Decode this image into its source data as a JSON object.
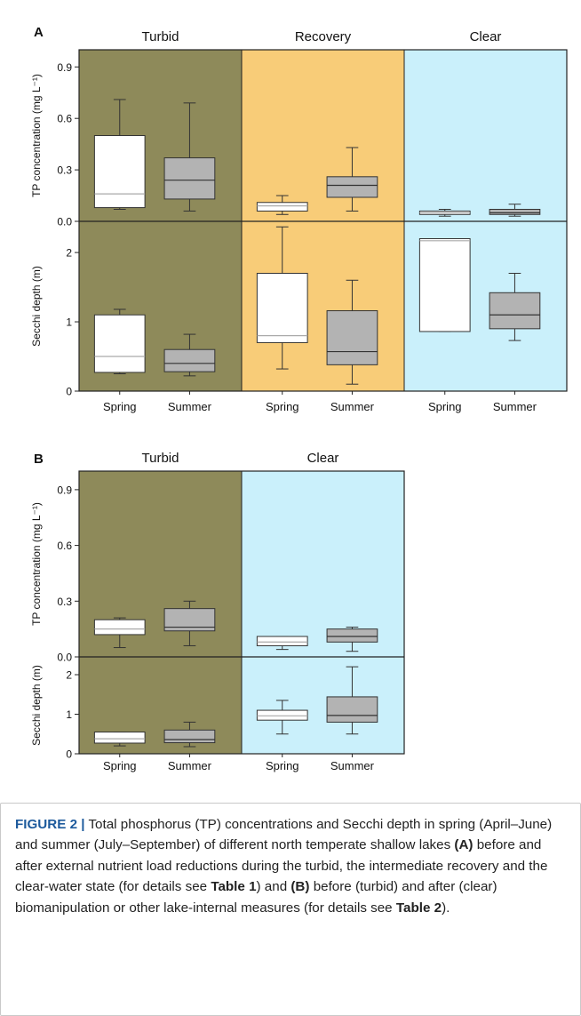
{
  "chart_data": [
    {
      "panel": "A",
      "type": "boxplot",
      "states": [
        {
          "name": "Turbid",
          "color": "#8e8a5a"
        },
        {
          "name": "Recovery",
          "color": "#f8cc78"
        },
        {
          "name": "Clear",
          "color": "#caf0fb"
        }
      ],
      "seasons": [
        "Spring",
        "Summer"
      ],
      "season_colors": {
        "Spring": "#ffffff",
        "Summer": "#b3b3b3"
      },
      "subplots": [
        {
          "ylabel": "TP concentration (mg L⁻¹)",
          "ylim": [
            0,
            1.0
          ],
          "yticks": [
            "0.0",
            "0.3",
            "0.6",
            "0.9"
          ],
          "tick_values": [
            0,
            0.3,
            0.6,
            0.9
          ],
          "boxes": [
            {
              "state": "Turbid",
              "season": "Spring",
              "whisker_low": 0.07,
              "q1": 0.08,
              "median": 0.16,
              "q3": 0.5,
              "whisker_high": 0.71
            },
            {
              "state": "Turbid",
              "season": "Summer",
              "whisker_low": 0.06,
              "q1": 0.13,
              "median": 0.24,
              "q3": 0.37,
              "whisker_high": 0.69
            },
            {
              "state": "Recovery",
              "season": "Spring",
              "whisker_low": 0.04,
              "q1": 0.06,
              "median": 0.09,
              "q3": 0.11,
              "whisker_high": 0.15
            },
            {
              "state": "Recovery",
              "season": "Summer",
              "whisker_low": 0.06,
              "q1": 0.14,
              "median": 0.21,
              "q3": 0.26,
              "whisker_high": 0.43
            },
            {
              "state": "Clear",
              "season": "Spring",
              "whisker_low": 0.03,
              "q1": 0.04,
              "median": 0.05,
              "q3": 0.06,
              "whisker_high": 0.07
            },
            {
              "state": "Clear",
              "season": "Summer",
              "whisker_low": 0.03,
              "q1": 0.04,
              "median": 0.05,
              "q3": 0.07,
              "whisker_high": 0.1
            }
          ]
        },
        {
          "ylabel": "Secchi depth (m)",
          "ylim": [
            0,
            2.45
          ],
          "yticks": [
            "0",
            "1",
            "2"
          ],
          "tick_values": [
            0,
            1,
            2
          ],
          "boxes": [
            {
              "state": "Turbid",
              "season": "Spring",
              "whisker_low": 0.25,
              "q1": 0.27,
              "median": 0.5,
              "q3": 1.1,
              "whisker_high": 1.18
            },
            {
              "state": "Turbid",
              "season": "Summer",
              "whisker_low": 0.22,
              "q1": 0.28,
              "median": 0.4,
              "q3": 0.6,
              "whisker_high": 0.82
            },
            {
              "state": "Recovery",
              "season": "Spring",
              "whisker_low": 0.32,
              "q1": 0.7,
              "median": 0.8,
              "q3": 1.7,
              "whisker_high": 2.37
            },
            {
              "state": "Recovery",
              "season": "Summer",
              "whisker_low": 0.1,
              "q1": 0.38,
              "median": 0.57,
              "q3": 1.16,
              "whisker_high": 1.6
            },
            {
              "state": "Clear",
              "season": "Spring",
              "whisker_low": 0.86,
              "q1": 0.86,
              "median": 2.17,
              "q3": 2.2,
              "whisker_high": 2.2
            },
            {
              "state": "Clear",
              "season": "Summer",
              "whisker_low": 0.73,
              "q1": 0.9,
              "median": 1.1,
              "q3": 1.42,
              "whisker_high": 1.7
            }
          ]
        }
      ]
    },
    {
      "panel": "B",
      "type": "boxplot",
      "states": [
        {
          "name": "Turbid",
          "color": "#8e8a5a"
        },
        {
          "name": "Clear",
          "color": "#caf0fb"
        }
      ],
      "seasons": [
        "Spring",
        "Summer"
      ],
      "season_colors": {
        "Spring": "#ffffff",
        "Summer": "#b3b3b3"
      },
      "subplots": [
        {
          "ylabel": "TP concentration (mg L⁻¹)",
          "ylim": [
            0,
            1.0
          ],
          "yticks": [
            "0.0",
            "0.3",
            "0.6",
            "0.9"
          ],
          "tick_values": [
            0,
            0.3,
            0.6,
            0.9
          ],
          "boxes": [
            {
              "state": "Turbid",
              "season": "Spring",
              "whisker_low": 0.05,
              "q1": 0.12,
              "median": 0.15,
              "q3": 0.2,
              "whisker_high": 0.21
            },
            {
              "state": "Turbid",
              "season": "Summer",
              "whisker_low": 0.06,
              "q1": 0.14,
              "median": 0.16,
              "q3": 0.26,
              "whisker_high": 0.3
            },
            {
              "state": "Clear",
              "season": "Spring",
              "whisker_low": 0.04,
              "q1": 0.06,
              "median": 0.08,
              "q3": 0.11,
              "whisker_high": 0.11
            },
            {
              "state": "Clear",
              "season": "Summer",
              "whisker_low": 0.03,
              "q1": 0.08,
              "median": 0.11,
              "q3": 0.15,
              "whisker_high": 0.16
            }
          ]
        },
        {
          "ylabel": "Secchi depth (m)",
          "ylim": [
            0,
            2.45
          ],
          "yticks": [
            "0",
            "1",
            "2"
          ],
          "tick_values": [
            0,
            1,
            2
          ],
          "boxes": [
            {
              "state": "Turbid",
              "season": "Spring",
              "whisker_low": 0.2,
              "q1": 0.27,
              "median": 0.38,
              "q3": 0.55,
              "whisker_high": 0.55
            },
            {
              "state": "Turbid",
              "season": "Summer",
              "whisker_low": 0.18,
              "q1": 0.28,
              "median": 0.36,
              "q3": 0.6,
              "whisker_high": 0.8
            },
            {
              "state": "Clear",
              "season": "Spring",
              "whisker_low": 0.5,
              "q1": 0.85,
              "median": 0.96,
              "q3": 1.1,
              "whisker_high": 1.35
            },
            {
              "state": "Clear",
              "season": "Summer",
              "whisker_low": 0.5,
              "q1": 0.8,
              "median": 0.97,
              "q3": 1.44,
              "whisker_high": 2.2
            }
          ]
        }
      ]
    }
  ],
  "caption": {
    "figure_label": "FIGURE 2 |",
    "part1": " Total phosphorus (TP) concentrations and Secchi depth in spring (April–June) and summer (July–September) of different north temperate shallow lakes ",
    "ref_a": "(A)",
    "part2": " before and after external nutrient load reductions during the turbid, the intermediate recovery and the clear-water state (for details see ",
    "table1": "Table 1",
    "part3": ") and ",
    "ref_b": "(B)",
    "part4": " before (turbid) and after (clear) biomanipulation or other lake-internal measures (for details see ",
    "table2": "Table 2",
    "part5": ")."
  }
}
